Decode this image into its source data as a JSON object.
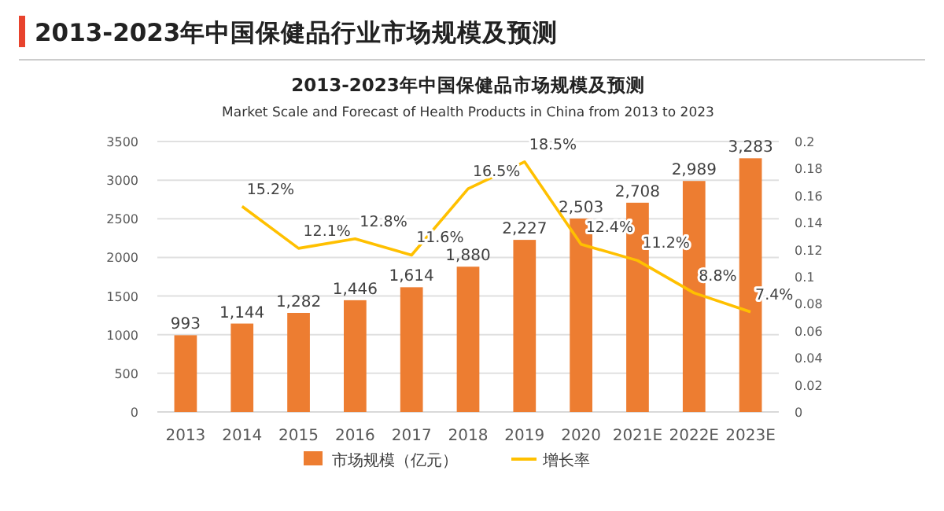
{
  "chart_data": {
    "type": "bar",
    "title": "2013-2023年中国保健品行业市场规模及预测",
    "subtitle": "2013-2023年中国保健品市场规模及预测",
    "annotations": [
      "Market Scale and Forecast of Health Products in China from 2013 to 2023"
    ],
    "categories": [
      "2013",
      "2014",
      "2015",
      "2016",
      "2017",
      "2018",
      "2019",
      "2020",
      "2021E",
      "2022E",
      "2023E"
    ],
    "series": [
      {
        "name": "市场规模（亿元）",
        "color": "#ed7d31",
        "values": [
          993,
          1144,
          1282,
          1446,
          1614,
          1880,
          2227,
          2503,
          2708,
          2989,
          3283
        ],
        "value_labels": [
          "993",
          "1,144",
          "1,282",
          "1,446",
          "1,614",
          "1,880",
          "2,227",
          "2,503",
          "2,708",
          "2,989",
          "3,283"
        ]
      },
      {
        "name": "增长率",
        "type": "line",
        "axis": "y2",
        "color": "#ffc000",
        "values": [
          null,
          0.152,
          0.121,
          0.128,
          0.116,
          0.165,
          0.185,
          0.124,
          0.112,
          0.088,
          0.074
        ],
        "value_labels": [
          null,
          "15.2%",
          "12.1%",
          "12.8%",
          "11.6%",
          "16.5%",
          "18.5%",
          "12.4%",
          "11.2%",
          "8.8%",
          "7.4%"
        ]
      }
    ],
    "ylim": [
      0,
      3500
    ],
    "yticks": [
      0,
      500,
      1000,
      1500,
      2000,
      2500,
      3000,
      3500
    ],
    "y2lim": [
      0,
      0.2
    ],
    "y2ticks": [
      0,
      0.02,
      0.04,
      0.06,
      0.08,
      0.1,
      0.12,
      0.14,
      0.16,
      0.18,
      0.2
    ],
    "grid": "y",
    "legend": "bottom",
    "marker": "none"
  }
}
